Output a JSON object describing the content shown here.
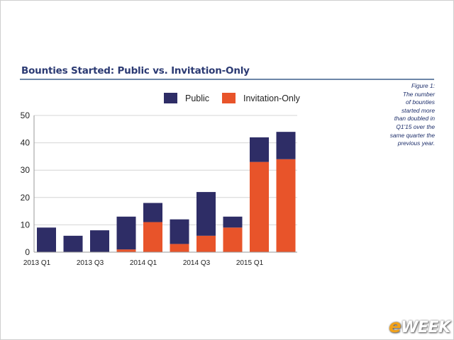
{
  "chart_data": {
    "type": "bar",
    "stacked": true,
    "title": "Bounties Started: Public vs. Invitation-Only",
    "categories": [
      "2013 Q1",
      "2013 Q2",
      "2013 Q3",
      "2013 Q4",
      "2014 Q1",
      "2014 Q2",
      "2014 Q3",
      "2014 Q4",
      "2015 Q1",
      "2015 Q2"
    ],
    "x_tick_labels": [
      "2013 Q1",
      "",
      "2013 Q3",
      "",
      "2014 Q1",
      "",
      "2014 Q3",
      "",
      "2015 Q1",
      ""
    ],
    "series": [
      {
        "name": "Invitation-Only",
        "values": [
          0,
          0,
          0,
          1,
          11,
          3,
          6,
          9,
          33,
          34
        ],
        "color": "#e8542a"
      },
      {
        "name": "Public",
        "values": [
          9,
          6,
          8,
          12,
          7,
          9,
          16,
          4,
          9,
          10
        ],
        "color": "#2e2d66"
      }
    ],
    "legend_order": [
      "Public",
      "Invitation-Only"
    ],
    "legend_position": "top",
    "ylim": [
      0,
      50
    ],
    "yticks": [
      0,
      10,
      20,
      30,
      40,
      50
    ],
    "grid": true,
    "xlabel": "",
    "ylabel": ""
  },
  "caption": {
    "lines": [
      "Figure 1:",
      "The number",
      "of bounties",
      "started more",
      "than doubled in",
      "Q1'15 over the",
      "same quarter the",
      "previous year."
    ]
  },
  "logo": {
    "mark": "e",
    "text": "WEEK"
  }
}
